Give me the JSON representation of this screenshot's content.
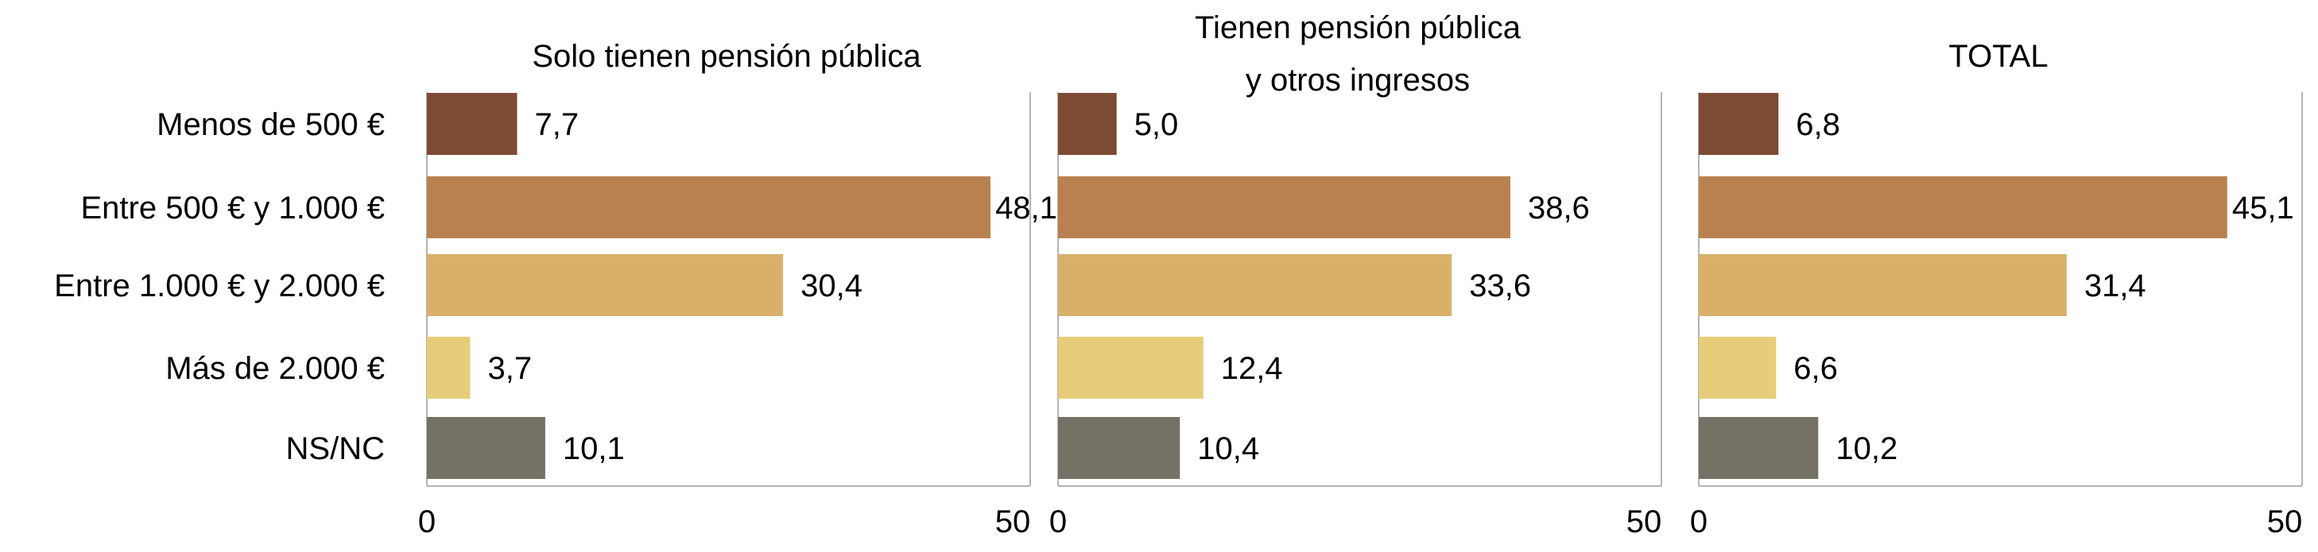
{
  "chart_data": {
    "type": "bar",
    "orientation": "horizontal",
    "categories": [
      "Menos de 500 €",
      "Entre 500 € y 1.000 €",
      "Entre 1.000 € y 2.000 €",
      "Más de 2.000 €",
      "NS/NC"
    ],
    "category_colors": [
      "#7d4a33",
      "#b98150",
      "#d8b06a",
      "#e7cd79",
      "#747264"
    ],
    "xlim": [
      0,
      50
    ],
    "xticks": [
      "0",
      "50"
    ],
    "grid": false,
    "panels": [
      {
        "title": "Solo tienen pensión pública",
        "values": [
          7.7,
          48.1,
          30.4,
          3.7,
          10.1
        ],
        "labels": [
          "7,7",
          "48,1",
          "30,4",
          "3,7",
          "10,1"
        ]
      },
      {
        "title": "Tienen pensión pública y otros ingresos",
        "title_lines": [
          "Tienen pensión pública",
          "y otros ingresos"
        ],
        "values": [
          5.0,
          38.6,
          33.6,
          12.4,
          10.4
        ],
        "labels": [
          "5,0",
          "38,6",
          "33,6",
          "12,4",
          "10,4"
        ]
      },
      {
        "title": "TOTAL",
        "values": [
          6.8,
          45.1,
          31.4,
          6.6,
          10.2
        ],
        "labels": [
          "6,8",
          "45,1",
          "31,4",
          "6,6",
          "10,2"
        ]
      }
    ]
  }
}
